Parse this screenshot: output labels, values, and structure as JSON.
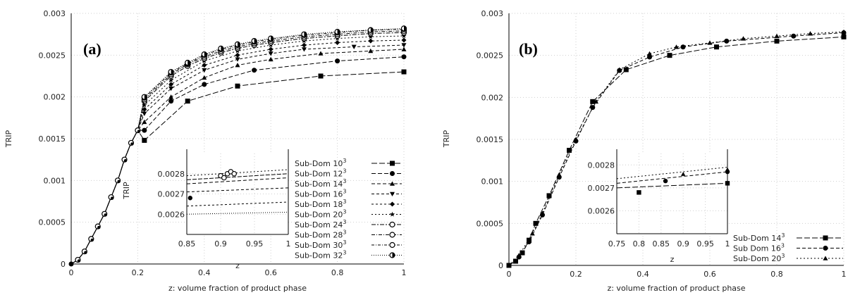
{
  "chart_data": [
    {
      "type": "line",
      "panel_label": "(a)",
      "ylabel": "TRIP",
      "xlabel": "z: volume fraction of product phase",
      "xlim": [
        0,
        1
      ],
      "ylim": [
        0,
        0.003
      ],
      "xticks": [
        0,
        0.2,
        0.4,
        0.6,
        0.8,
        1
      ],
      "xtick_labels": [
        "0",
        "0.2",
        "0.4",
        "0.6",
        "0.8",
        "1"
      ],
      "yticks": [
        0,
        0.0005,
        0.001,
        0.0015,
        0.002,
        0.0025,
        0.003
      ],
      "ytick_labels": [
        "0",
        "0.0005",
        "0.001",
        "0.0015",
        "0.002",
        "0.0025",
        "0.003"
      ],
      "grid": true,
      "legend_position": "bottom-right",
      "common_curve": {
        "x": [
          0,
          0.02,
          0.04,
          0.06,
          0.08,
          0.1,
          0.12,
          0.14,
          0.16,
          0.18,
          0.2
        ],
        "y": [
          0,
          5e-05,
          0.00015,
          0.0003,
          0.00045,
          0.0006,
          0.0008,
          0.001,
          0.00125,
          0.00145,
          0.0016
        ]
      },
      "series": [
        {
          "name": "Sub-Dom 10",
          "exponent": "3",
          "marker": "square",
          "dash": "8,3",
          "x": [
            0.22,
            0.35,
            0.5,
            0.75,
            1.0
          ],
          "y": [
            0.00148,
            0.00195,
            0.00213,
            0.00225,
            0.0023
          ]
        },
        {
          "name": "Sub-Dom 12",
          "exponent": "3",
          "marker": "circle",
          "dash": "6,3",
          "x": [
            0.22,
            0.3,
            0.4,
            0.55,
            0.8,
            1.0
          ],
          "y": [
            0.0016,
            0.00195,
            0.00215,
            0.00232,
            0.00243,
            0.00248
          ]
        },
        {
          "name": "Sub-Dom 14",
          "exponent": "3",
          "marker": "triangle",
          "dash": "5,3",
          "x": [
            0.22,
            0.3,
            0.4,
            0.5,
            0.6,
            0.75,
            0.9,
            1.0
          ],
          "y": [
            0.0017,
            0.002,
            0.00223,
            0.00238,
            0.00245,
            0.00252,
            0.00255,
            0.00257
          ]
        },
        {
          "name": "Sub-Dom 16",
          "exponent": "3",
          "marker": "triangle-down",
          "dash": "4,3",
          "x": [
            0.22,
            0.3,
            0.4,
            0.5,
            0.6,
            0.7,
            0.85,
            1.0
          ],
          "y": [
            0.0018,
            0.0021,
            0.00232,
            0.00245,
            0.00252,
            0.00257,
            0.0026,
            0.00262
          ]
        },
        {
          "name": "Sub-Dom 18",
          "exponent": "3",
          "marker": "diamond",
          "dash": "3,3",
          "x": [
            0.22,
            0.3,
            0.4,
            0.5,
            0.6,
            0.7,
            0.8,
            0.9,
            1.0
          ],
          "y": [
            0.00185,
            0.00215,
            0.00238,
            0.0025,
            0.00257,
            0.00262,
            0.00265,
            0.00267,
            0.00268
          ]
        },
        {
          "name": "Sub-Dom 20",
          "exponent": "3",
          "marker": "star",
          "dash": "2,3",
          "x": [
            0.22,
            0.3,
            0.4,
            0.5,
            0.6,
            0.7,
            0.8,
            0.9,
            1.0
          ],
          "y": [
            0.0019,
            0.0022,
            0.00243,
            0.00255,
            0.00262,
            0.00267,
            0.0027,
            0.00272,
            0.00273
          ]
        },
        {
          "name": "Sub-Dom 24",
          "exponent": "3",
          "marker": "open-circle",
          "dash": "6,2,2,2",
          "x": [
            0.22,
            0.3,
            0.35,
            0.4,
            0.45,
            0.5,
            0.55,
            0.6,
            0.7,
            0.8,
            0.9,
            1.0
          ],
          "y": [
            0.00195,
            0.00225,
            0.00237,
            0.00246,
            0.00253,
            0.00258,
            0.00262,
            0.00265,
            0.0027,
            0.00273,
            0.00276,
            0.00277
          ]
        },
        {
          "name": "Sub-Dom 28",
          "exponent": "3",
          "marker": "open-circle",
          "dash": "5,2,1,2",
          "x": [
            0.22,
            0.3,
            0.35,
            0.4,
            0.45,
            0.5,
            0.55,
            0.6,
            0.7,
            0.8,
            0.9,
            1.0
          ],
          "y": [
            0.00197,
            0.00227,
            0.00239,
            0.00248,
            0.00255,
            0.0026,
            0.00264,
            0.00267,
            0.00272,
            0.00275,
            0.00278,
            0.00279
          ]
        },
        {
          "name": "Sub-Dom 30",
          "exponent": "3",
          "marker": "open-circle",
          "dash": "4,2,1,2",
          "x": [
            0.22,
            0.3,
            0.35,
            0.4,
            0.45,
            0.5,
            0.55,
            0.6,
            0.7,
            0.8,
            0.9,
            1.0
          ],
          "y": [
            0.00199,
            0.00229,
            0.0024,
            0.0025,
            0.00257,
            0.00262,
            0.00266,
            0.00269,
            0.00274,
            0.00277,
            0.0028,
            0.00281
          ]
        },
        {
          "name": "Sub-Dom 32",
          "exponent": "3",
          "marker": "half-circle",
          "dash": "1,2",
          "x": [
            0.22,
            0.3,
            0.35,
            0.4,
            0.45,
            0.5,
            0.55,
            0.6,
            0.7,
            0.8,
            0.9,
            1.0
          ],
          "y": [
            0.002,
            0.0023,
            0.00241,
            0.00251,
            0.00258,
            0.00263,
            0.00267,
            0.0027,
            0.00275,
            0.00278,
            0.0028,
            0.00282
          ]
        }
      ],
      "inset": {
        "xlabel": "z",
        "ylabel": "TRIP",
        "xlim": [
          0.85,
          1
        ],
        "ylim": [
          0.0025,
          0.0029
        ],
        "xticks": [
          0.85,
          0.9,
          0.95,
          1
        ],
        "xtick_labels": [
          "0.85",
          "0.9",
          "0.95",
          "1"
        ],
        "yticks": [
          0.0026,
          0.0027,
          0.0028
        ],
        "ytick_labels": [
          "0.0026",
          "0.0027",
          "0.0028"
        ],
        "points": [
          {
            "x": 0.9,
            "y": 0.00279,
            "marker": "open-circle"
          },
          {
            "x": 0.905,
            "y": 0.00278,
            "marker": "open-circle"
          },
          {
            "x": 0.91,
            "y": 0.0028,
            "marker": "open-circle"
          },
          {
            "x": 0.915,
            "y": 0.00281,
            "marker": "open-circle"
          },
          {
            "x": 0.92,
            "y": 0.0028,
            "marker": "open-circle"
          },
          {
            "x": 0.855,
            "y": 0.00268,
            "marker": "circle"
          }
        ],
        "lines": [
          {
            "y0": 0.0026,
            "y1": 0.00261,
            "dash": "1,2"
          },
          {
            "y0": 0.00264,
            "y1": 0.00266,
            "dash": "3,3"
          },
          {
            "y0": 0.00271,
            "y1": 0.00273,
            "dash": "4,3"
          },
          {
            "y0": 0.00275,
            "y1": 0.00278,
            "dash": "5,3"
          },
          {
            "y0": 0.00277,
            "y1": 0.0028,
            "dash": "6,2"
          },
          {
            "y0": 0.00279,
            "y1": 0.00282,
            "dash": "2,3"
          }
        ]
      }
    },
    {
      "type": "line",
      "panel_label": "(b)",
      "ylabel": "TRIP",
      "xlabel": "z: volume fraction of product phase",
      "xlim": [
        0,
        1
      ],
      "ylim": [
        0,
        0.003
      ],
      "xticks": [
        0,
        0.2,
        0.4,
        0.6,
        0.8,
        1
      ],
      "xtick_labels": [
        "0",
        "0.2",
        "0.4",
        "0.6",
        "0.8",
        "1"
      ],
      "yticks": [
        0,
        0.0005,
        0.001,
        0.0015,
        0.002,
        0.0025,
        0.003
      ],
      "ytick_labels": [
        "0",
        "0.0005",
        "0.001",
        "0.0015",
        "0.002",
        "0.0025",
        "0.003"
      ],
      "grid": true,
      "legend_position": "bottom-right",
      "series": [
        {
          "name": "Sub-Dom 14",
          "exponent": "3",
          "marker": "square",
          "dash": "8,3",
          "x": [
            0,
            0.02,
            0.04,
            0.06,
            0.08,
            0.12,
            0.18,
            0.25,
            0.35,
            0.48,
            0.62,
            0.8,
            1.0
          ],
          "y": [
            0,
            5e-05,
            0.00015,
            0.0003,
            0.0005,
            0.00083,
            0.00137,
            0.00195,
            0.00233,
            0.0025,
            0.0026,
            0.00267,
            0.00272
          ]
        },
        {
          "name": "Sub Dom 16",
          "exponent": "3",
          "marker": "circle",
          "dash": "5,3",
          "x": [
            0,
            0.03,
            0.06,
            0.1,
            0.15,
            0.2,
            0.25,
            0.33,
            0.42,
            0.52,
            0.65,
            0.85,
            1.0
          ],
          "y": [
            0,
            0.0001,
            0.00028,
            0.0006,
            0.00105,
            0.00148,
            0.00188,
            0.00232,
            0.00248,
            0.0026,
            0.00267,
            0.00273,
            0.00277
          ]
        },
        {
          "name": "Sub-Dom 20",
          "exponent": "3",
          "marker": "triangle",
          "dash": "2,3",
          "x": [
            0,
            0.03,
            0.07,
            0.1,
            0.15,
            0.2,
            0.26,
            0.33,
            0.42,
            0.5,
            0.6,
            0.7,
            0.8,
            0.9,
            1.0
          ],
          "y": [
            0,
            0.00012,
            0.00038,
            0.00062,
            0.00108,
            0.0015,
            0.00195,
            0.00233,
            0.00252,
            0.0026,
            0.00265,
            0.0027,
            0.00273,
            0.00276,
            0.00278
          ]
        }
      ],
      "inset": {
        "xlabel": "z",
        "ylabel": "",
        "xlim": [
          0.75,
          1
        ],
        "ylim": [
          0.0025,
          0.00285
        ],
        "xticks": [
          0.75,
          0.8,
          0.85,
          0.9,
          0.95,
          1
        ],
        "xtick_labels": [
          "0.75",
          "0.8",
          "0.85",
          "0.9",
          "0.95",
          "1"
        ],
        "yticks": [
          0.0026,
          0.0027,
          0.0028
        ],
        "ytick_labels": [
          "0.0026",
          "0.0027",
          "0.0028"
        ],
        "points": [
          {
            "x": 0.8,
            "y": 0.00268,
            "marker": "square"
          },
          {
            "x": 1.0,
            "y": 0.00272,
            "marker": "square"
          },
          {
            "x": 0.86,
            "y": 0.00273,
            "marker": "circle"
          },
          {
            "x": 1.0,
            "y": 0.00277,
            "marker": "circle"
          },
          {
            "x": 0.9,
            "y": 0.00276,
            "marker": "triangle"
          },
          {
            "x": 1.0,
            "y": 0.00278,
            "marker": "triangle"
          }
        ],
        "lines": [
          {
            "y0": 0.0027,
            "y1": 0.00272,
            "dash": "8,3"
          },
          {
            "y0": 0.00272,
            "y1": 0.00277,
            "dash": "5,3"
          },
          {
            "y0": 0.00274,
            "y1": 0.00279,
            "dash": "2,3"
          }
        ]
      }
    }
  ]
}
